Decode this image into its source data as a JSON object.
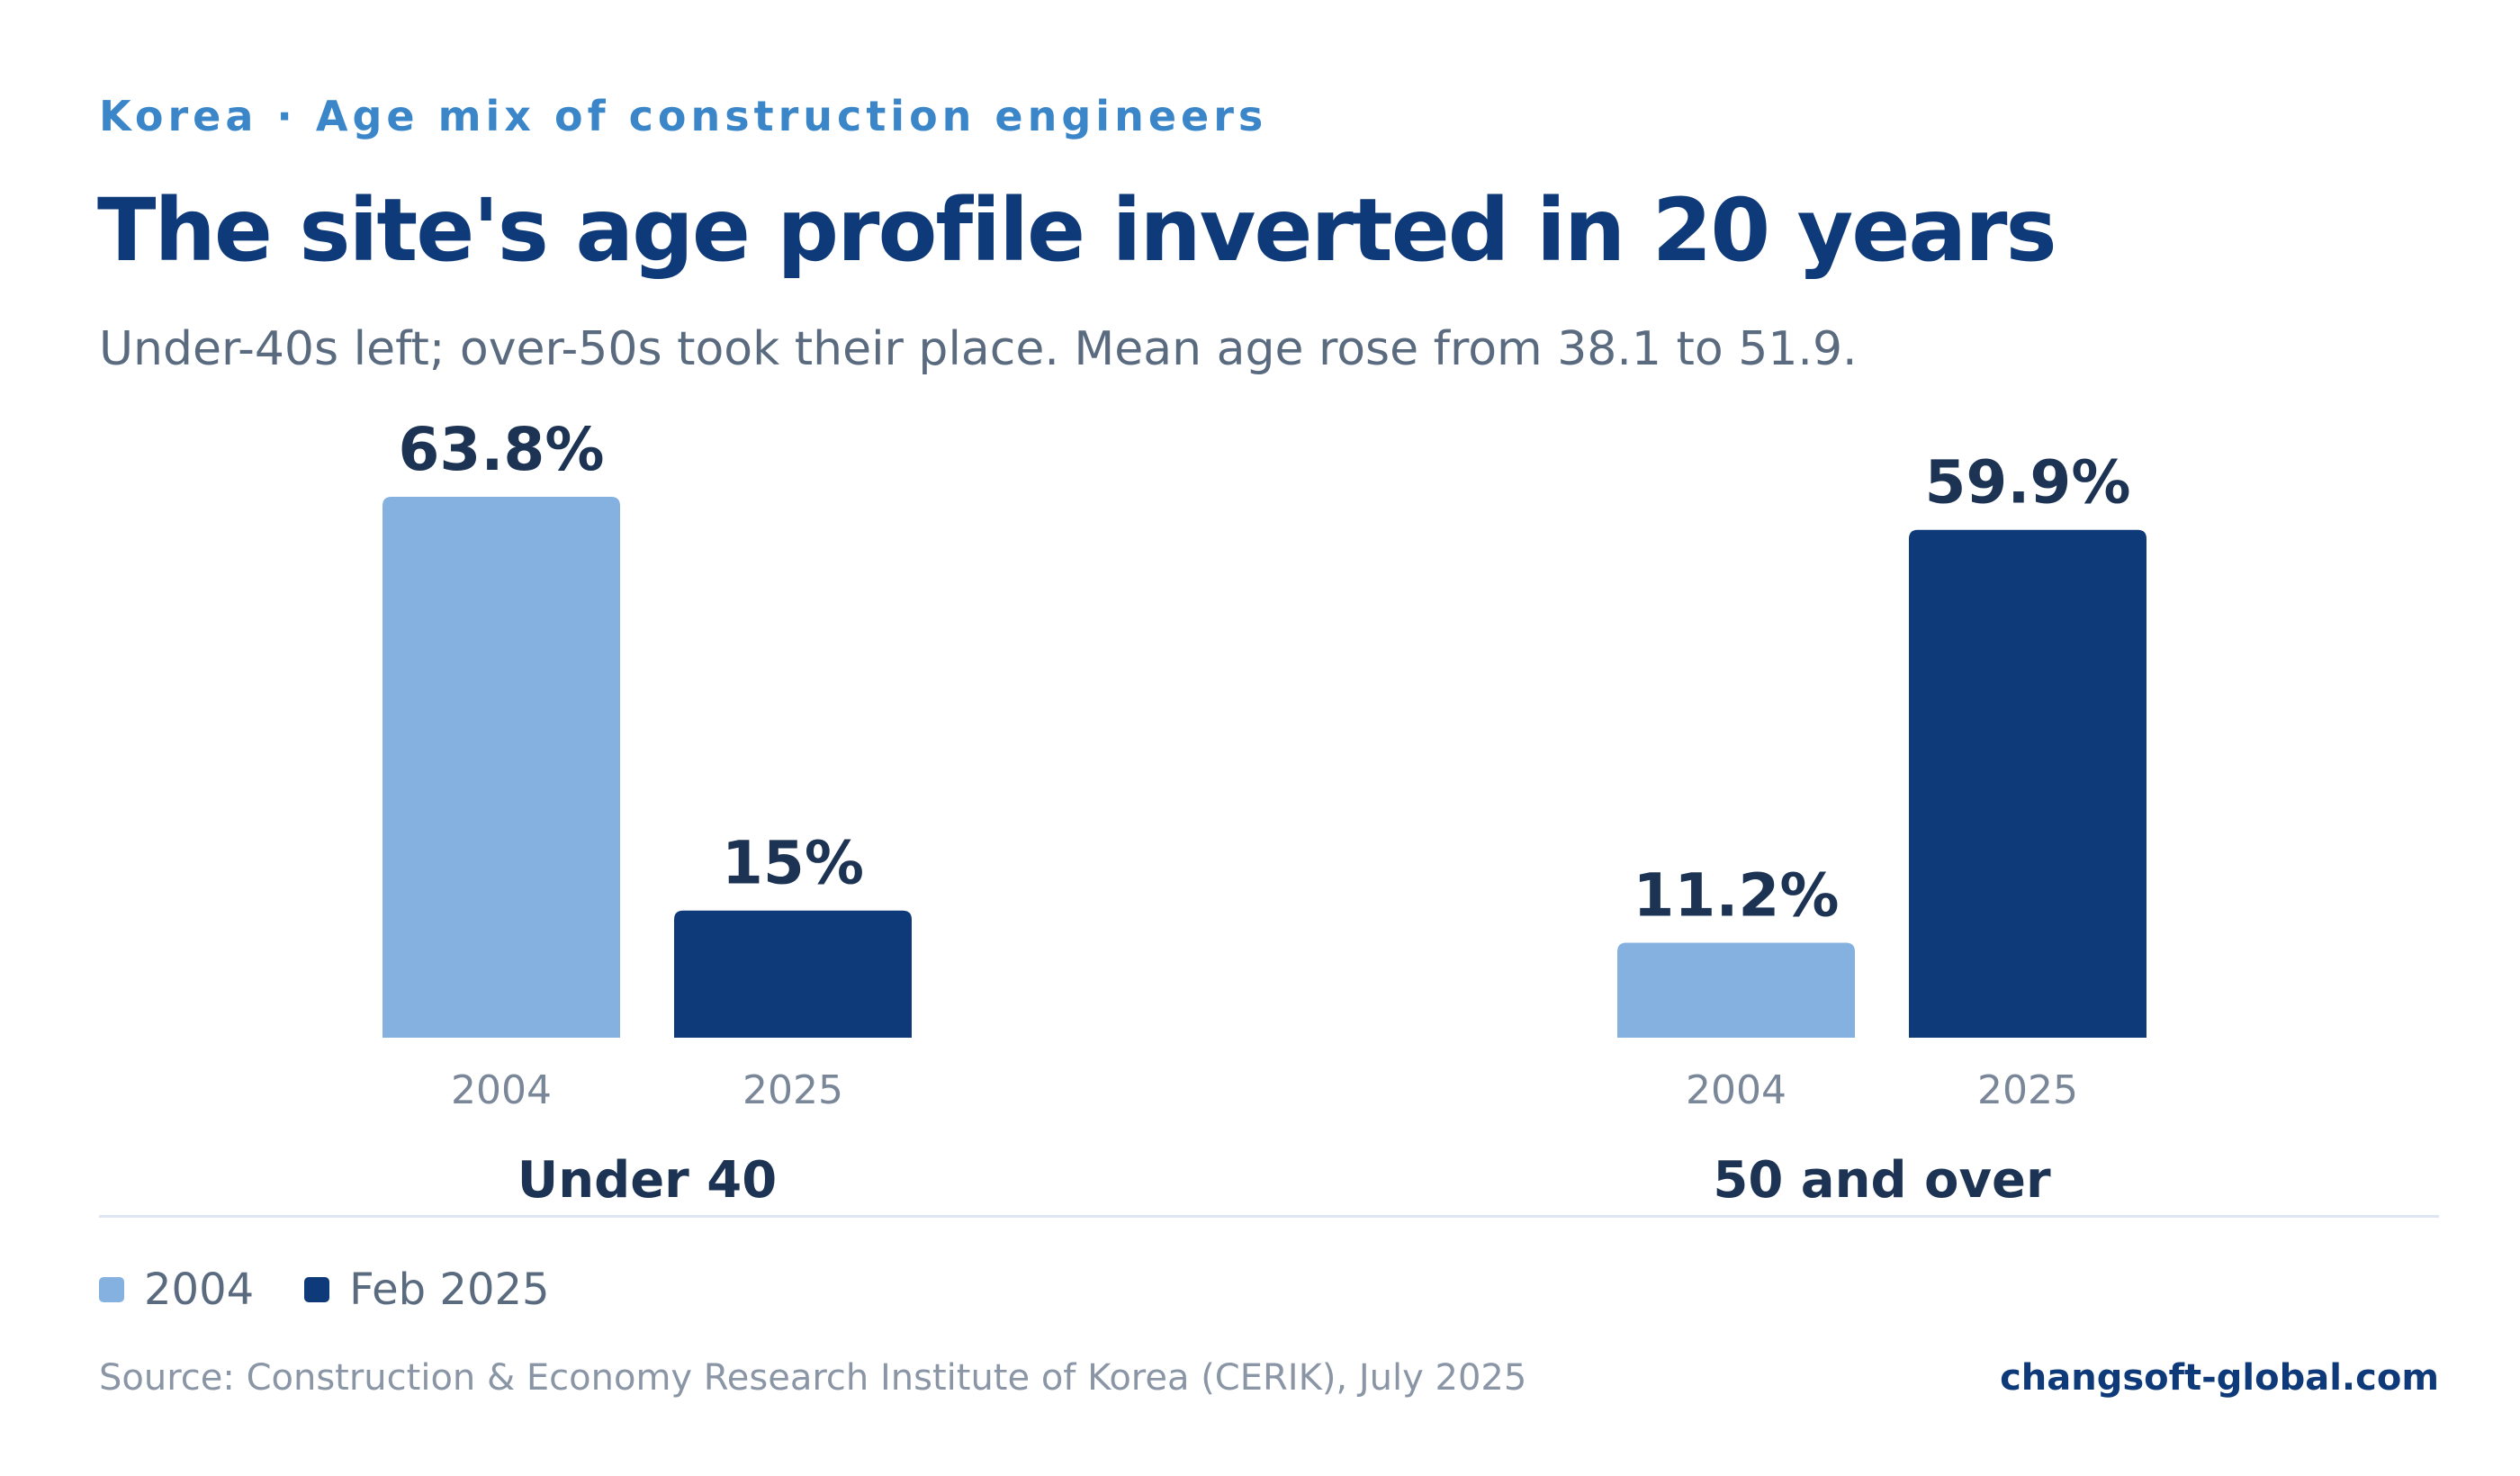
{
  "header": {
    "kicker": "Korea · Age mix of construction engineers",
    "title": "The site's age profile inverted in 20 years",
    "subtitle": "Under-40s left; over-50s took their place. Mean age rose from 38.1 to 51.9."
  },
  "colors": {
    "series_2004": "#84b1e0",
    "series_2025": "#0f3a7a"
  },
  "chart_data": {
    "type": "bar",
    "categories": [
      "Under 40",
      "50 and over"
    ],
    "series": [
      {
        "name": "2004",
        "values": [
          63.8,
          11.2
        ],
        "value_labels": [
          "63.8%",
          "11.2%"
        ],
        "tick": "2004"
      },
      {
        "name": "Feb 2025",
        "values": [
          15,
          59.9
        ],
        "value_labels": [
          "15%",
          "59.9%"
        ],
        "tick": "2025"
      }
    ],
    "unit": "%",
    "ylim": [
      0,
      63.8
    ],
    "grid": false,
    "legend_position": "bottom-left"
  },
  "legend": [
    {
      "label": "2004"
    },
    {
      "label": "Feb 2025"
    }
  ],
  "footer": {
    "source": "Source: Construction & Economy Research Institute of Korea (CERIK), July 2025",
    "brand": "changsoft-global.com"
  }
}
